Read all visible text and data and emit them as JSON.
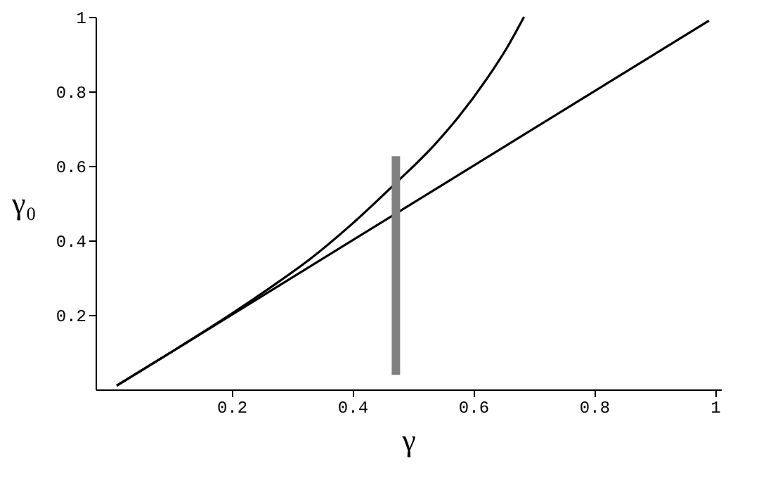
{
  "chart_data": {
    "type": "line",
    "xlabel": "γ",
    "ylabel": "γ₀",
    "series": [
      {
        "color": "#000000",
        "x": [
          0.01,
          0.99
        ],
        "values": [
          0.01,
          0.99
        ]
      },
      {
        "color": "#000000",
        "x": [
          0.01,
          0.1,
          0.2,
          0.27,
          0.33,
          0.4,
          0.47,
          0.535,
          0.575,
          0.623,
          0.655,
          0.684
        ],
        "values": [
          0.01,
          0.1,
          0.203,
          0.28,
          0.35,
          0.445,
          0.551,
          0.655,
          0.73,
          0.835,
          0.915,
          1.0
        ]
      },
      {
        "color": "#808080",
        "x": [
          0.472,
          0.472
        ],
        "values": [
          0.039,
          0.626
        ]
      }
    ],
    "xlim": [
      -0.025,
      1.01
    ],
    "ylim": [
      0,
      1
    ],
    "xticks": [
      0.2,
      0.4,
      0.6,
      0.8,
      1
    ],
    "yticks": [
      0.2,
      0.4,
      0.6,
      0.8,
      1
    ],
    "grid": false,
    "marker": "none",
    "line_style": "solid"
  }
}
